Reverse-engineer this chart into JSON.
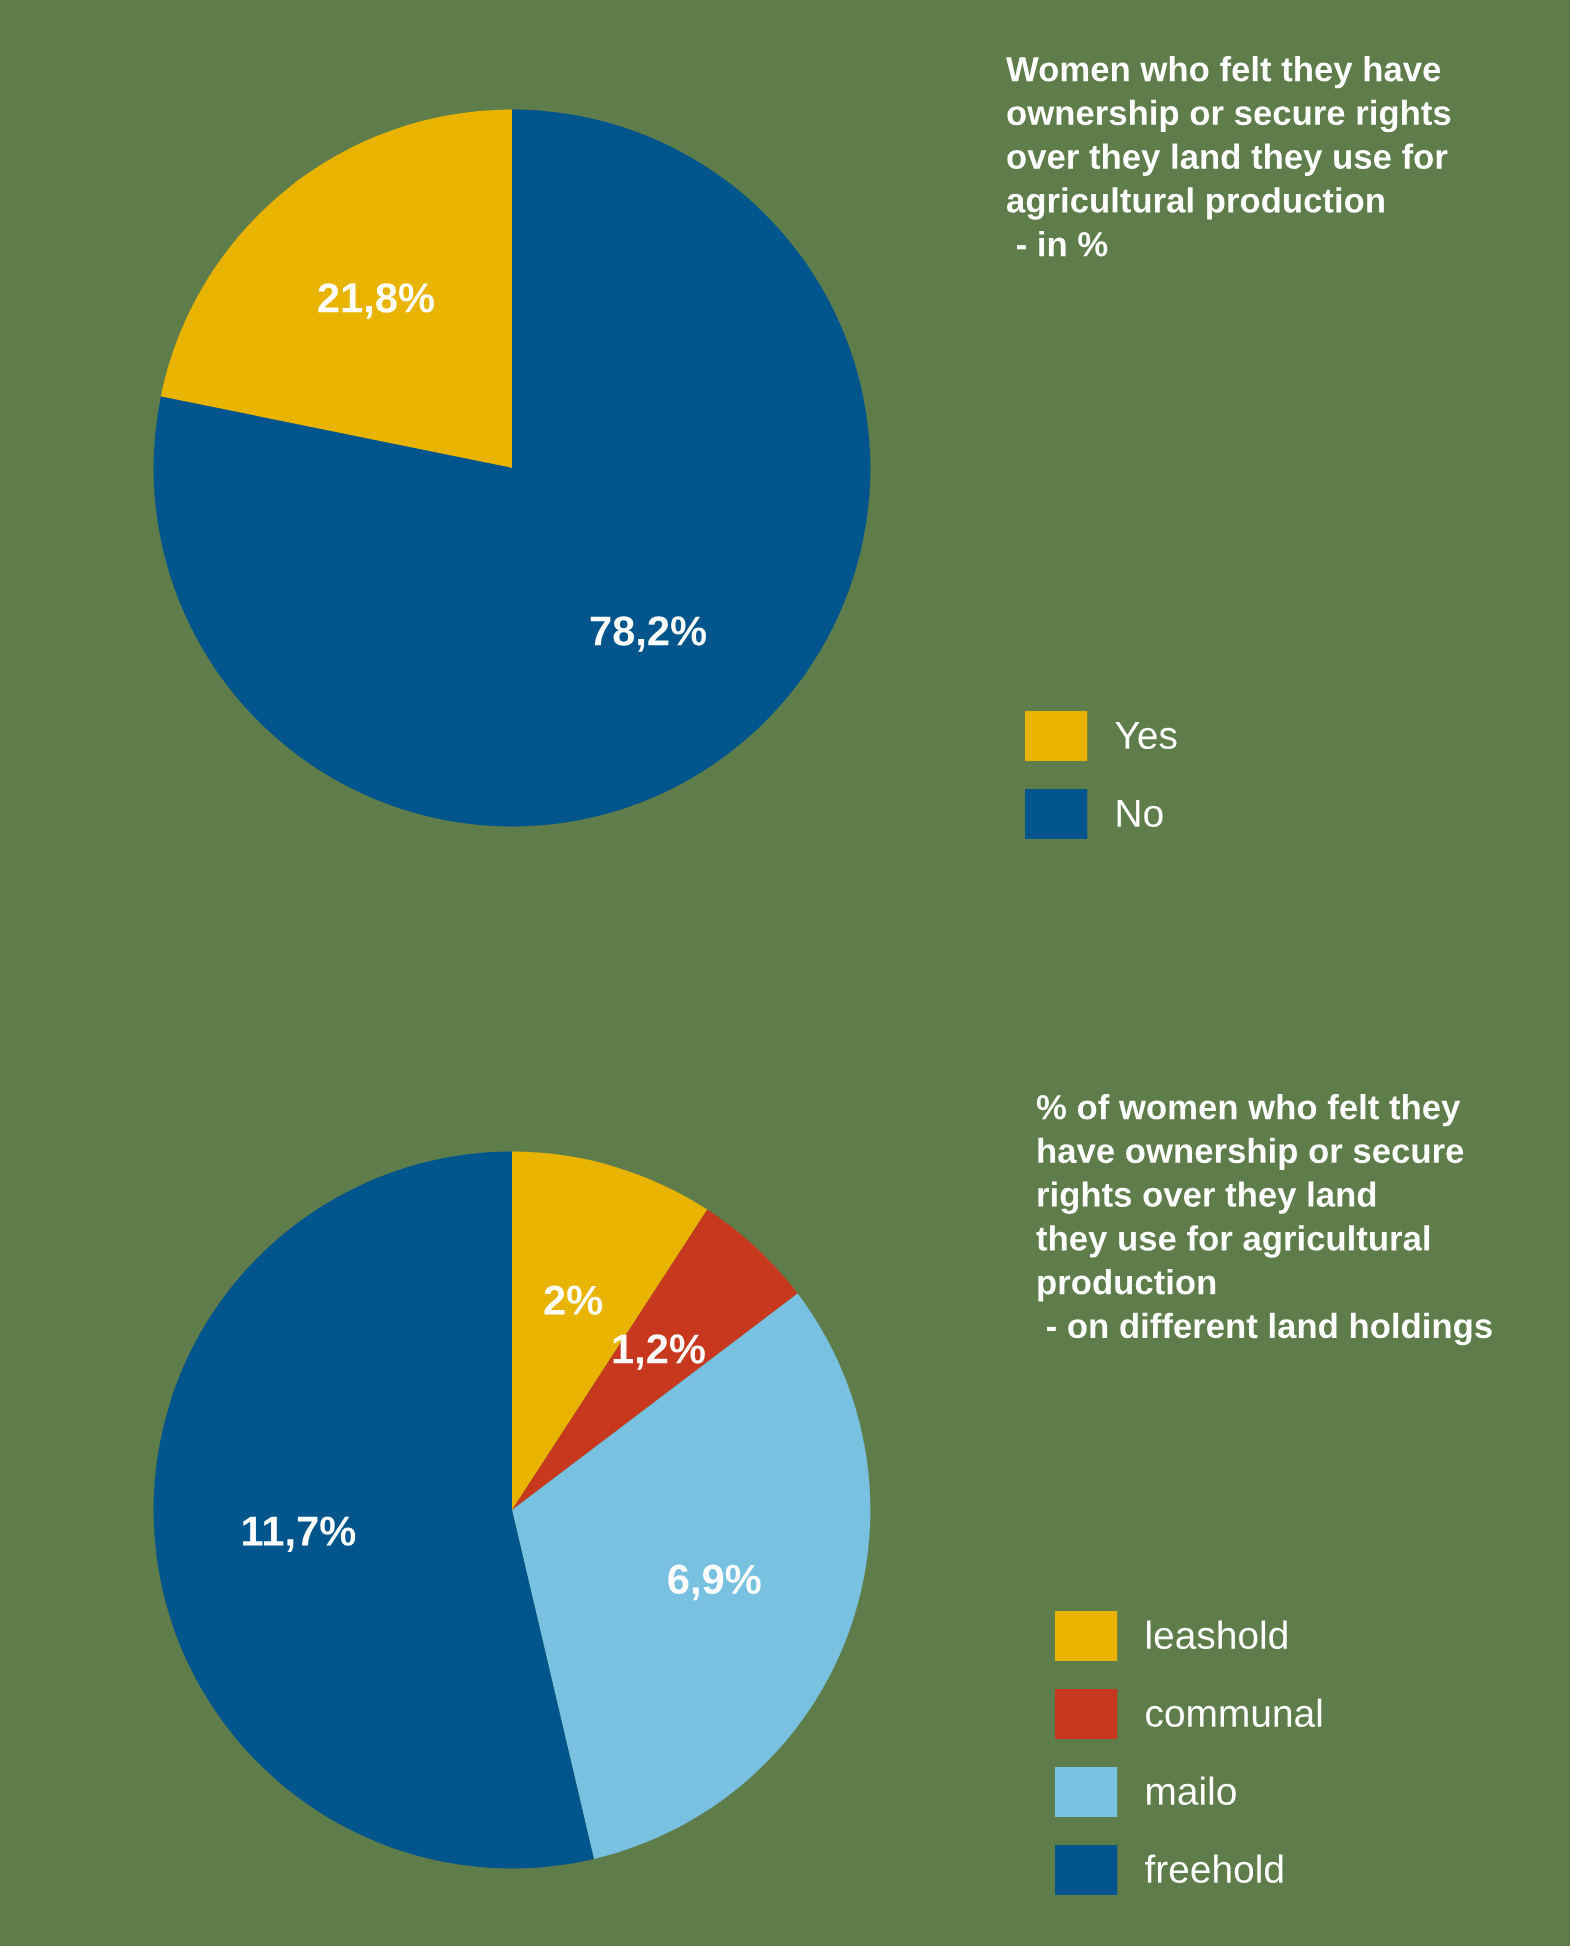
{
  "chart_data": [
    {
      "type": "pie",
      "title": "Women who felt they have\nownership or secure rights\nover they land they use for\nagricultural production\n - in %",
      "categories": [
        "Yes",
        "No"
      ],
      "values": [
        21.8,
        78.2
      ],
      "colors": [
        "#e8b400",
        "#00558c"
      ],
      "value_labels": [
        "21,8%",
        "78,2%"
      ],
      "legend": "right"
    },
    {
      "type": "pie",
      "title": "% of women who felt they\nhave ownership or secure\nrights over they land\nthey use for agricultural\nproduction\n - on different land holdings",
      "categories": [
        "leashold",
        "communal",
        "mailo",
        "freehold"
      ],
      "values": [
        2,
        1.2,
        6.9,
        11.7
      ],
      "colors": [
        "#e8b400",
        "#c8381e",
        "#78c1e0",
        "#00558c"
      ],
      "value_labels": [
        "2%",
        "1,2%",
        "6,9%",
        "11,7%"
      ],
      "legend": "right"
    }
  ]
}
